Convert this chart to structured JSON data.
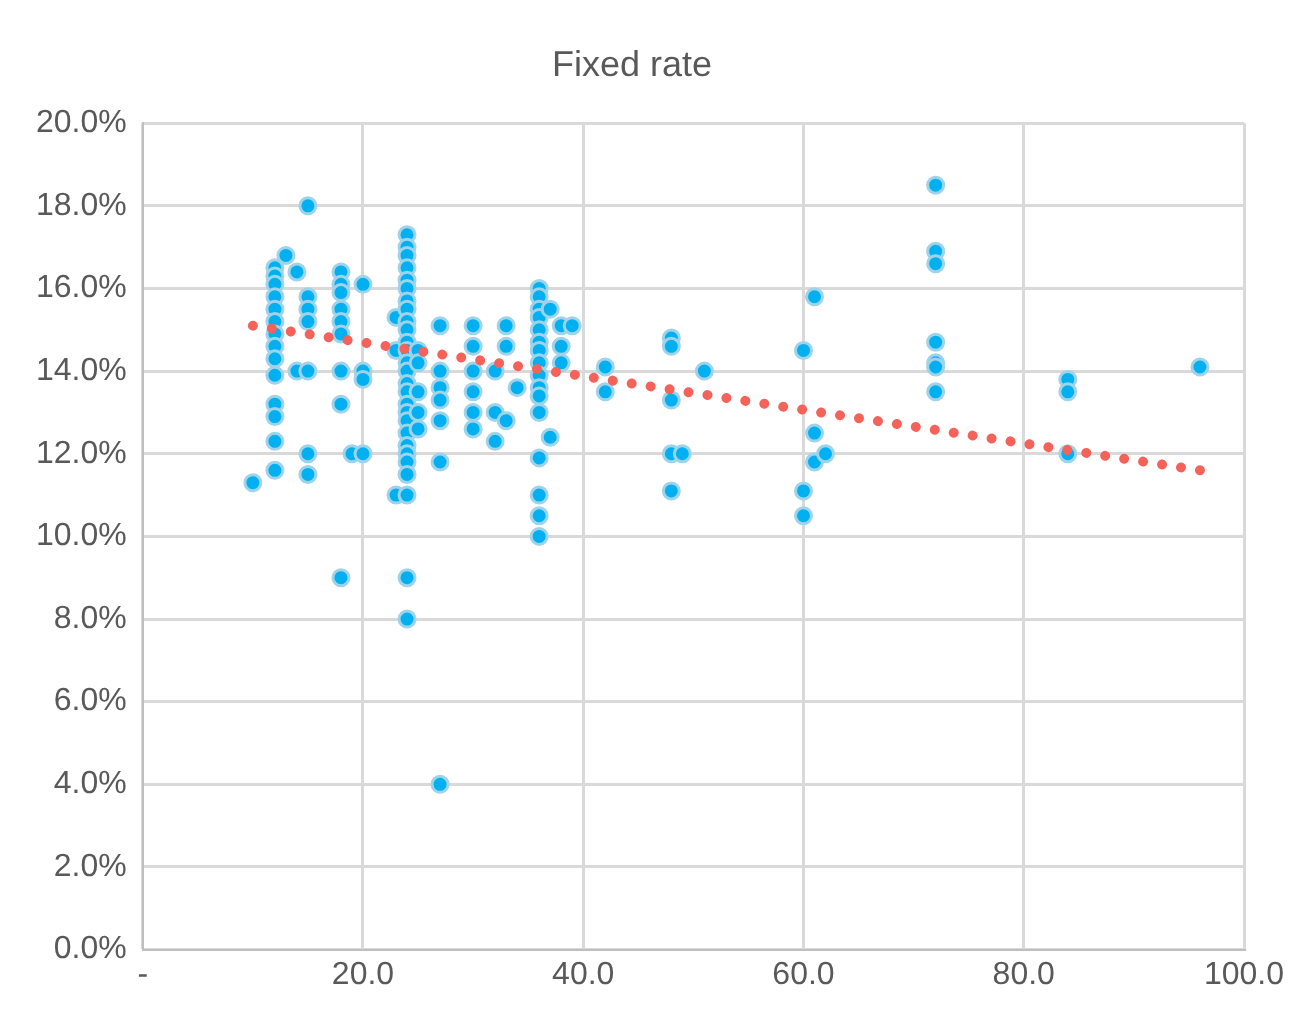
{
  "chart_data": {
    "type": "scatter",
    "title": "Fixed rate",
    "xlim": [
      0,
      100
    ],
    "ylim": [
      0,
      20
    ],
    "xticks": [
      {
        "value": 0,
        "label": "-"
      },
      {
        "value": 20,
        "label": "20.0"
      },
      {
        "value": 40,
        "label": "40.0"
      },
      {
        "value": 60,
        "label": "60.0"
      },
      {
        "value": 80,
        "label": "80.0"
      },
      {
        "value": 100,
        "label": "100.0"
      }
    ],
    "yticks": [
      {
        "value": 0,
        "label": "0.0%"
      },
      {
        "value": 2,
        "label": "2.0%"
      },
      {
        "value": 4,
        "label": "4.0%"
      },
      {
        "value": 6,
        "label": "6.0%"
      },
      {
        "value": 8,
        "label": "8.0%"
      },
      {
        "value": 10,
        "label": "10.0%"
      },
      {
        "value": 12,
        "label": "12.0%"
      },
      {
        "value": 14,
        "label": "14.0%"
      },
      {
        "value": 16,
        "label": "16.0%"
      },
      {
        "value": 18,
        "label": "18.0%"
      },
      {
        "value": 20,
        "label": "20.0%"
      }
    ],
    "grid": true,
    "legend": false,
    "series": [
      {
        "marker": "circle",
        "color": "#00b0f0",
        "x": [
          10,
          12,
          12,
          12,
          12,
          12,
          12,
          12,
          12,
          12,
          12,
          12,
          12,
          12,
          12,
          13,
          14,
          14,
          15,
          15,
          15,
          15,
          15,
          15,
          15,
          18,
          18,
          18,
          18,
          18,
          18,
          18,
          18,
          18,
          19,
          20,
          20,
          20,
          20,
          23,
          23,
          23,
          24,
          24,
          24,
          24,
          24,
          24,
          24,
          24,
          24,
          24,
          24,
          24,
          24,
          24,
          24,
          24,
          24,
          24,
          24,
          24,
          24,
          24,
          24,
          24,
          24,
          24,
          24,
          25,
          25,
          25,
          25,
          25,
          27,
          27,
          27,
          27,
          27,
          27,
          27,
          30,
          30,
          30,
          30,
          30,
          30,
          32,
          32,
          32,
          33,
          33,
          33,
          34,
          36,
          36,
          36,
          36,
          36,
          36,
          36,
          36,
          36,
          36,
          36,
          36,
          36,
          36,
          36,
          36,
          37,
          37,
          38,
          38,
          38,
          39,
          42,
          42,
          48,
          48,
          48,
          48,
          48,
          49,
          51,
          60,
          60,
          60,
          61,
          61,
          61,
          62,
          72,
          72,
          72,
          72,
          72,
          72,
          72,
          84,
          84,
          84,
          96
        ],
        "values": [
          11.3,
          16.5,
          16.3,
          16.1,
          15.8,
          15.5,
          15.2,
          14.9,
          14.6,
          14.3,
          13.9,
          13.2,
          12.9,
          12.3,
          11.6,
          16.8,
          16.4,
          14.0,
          18.0,
          15.8,
          15.5,
          15.2,
          14.0,
          12.0,
          11.5,
          16.4,
          16.1,
          15.9,
          15.5,
          15.2,
          14.9,
          14.0,
          13.2,
          9.0,
          12.0,
          16.1,
          14.0,
          13.8,
          12.0,
          15.3,
          14.5,
          11.0,
          17.3,
          17.0,
          16.8,
          16.5,
          16.2,
          16.0,
          15.7,
          15.5,
          15.2,
          15.0,
          14.7,
          14.5,
          14.2,
          14.0,
          13.7,
          13.5,
          13.2,
          13.0,
          12.8,
          12.5,
          12.2,
          12.0,
          11.8,
          11.5,
          11.0,
          9.0,
          8.0,
          14.5,
          14.2,
          13.5,
          13.0,
          12.6,
          15.1,
          14.0,
          13.6,
          13.3,
          12.8,
          11.8,
          4.0,
          15.1,
          14.6,
          14.0,
          13.5,
          13.0,
          12.6,
          14.0,
          13.0,
          12.3,
          15.1,
          14.6,
          12.8,
          13.6,
          16.0,
          15.8,
          15.5,
          15.3,
          15.0,
          14.7,
          14.5,
          14.2,
          13.9,
          13.6,
          13.4,
          13.0,
          11.9,
          11.0,
          10.5,
          10.0,
          15.5,
          12.4,
          15.1,
          14.6,
          14.2,
          15.1,
          14.1,
          13.5,
          14.8,
          14.6,
          13.3,
          12.0,
          11.1,
          12.0,
          14.0,
          14.5,
          11.1,
          10.5,
          15.8,
          12.5,
          11.8,
          12.0,
          18.5,
          16.9,
          16.6,
          14.7,
          14.2,
          14.1,
          13.5,
          13.8,
          13.5,
          12.0,
          14.1
        ]
      },
      {
        "type": "line",
        "marker": "none",
        "color": "#f4625a",
        "line_style": "dotted",
        "x": [
          10,
          96
        ],
        "values": [
          15.1,
          11.6
        ]
      }
    ]
  }
}
